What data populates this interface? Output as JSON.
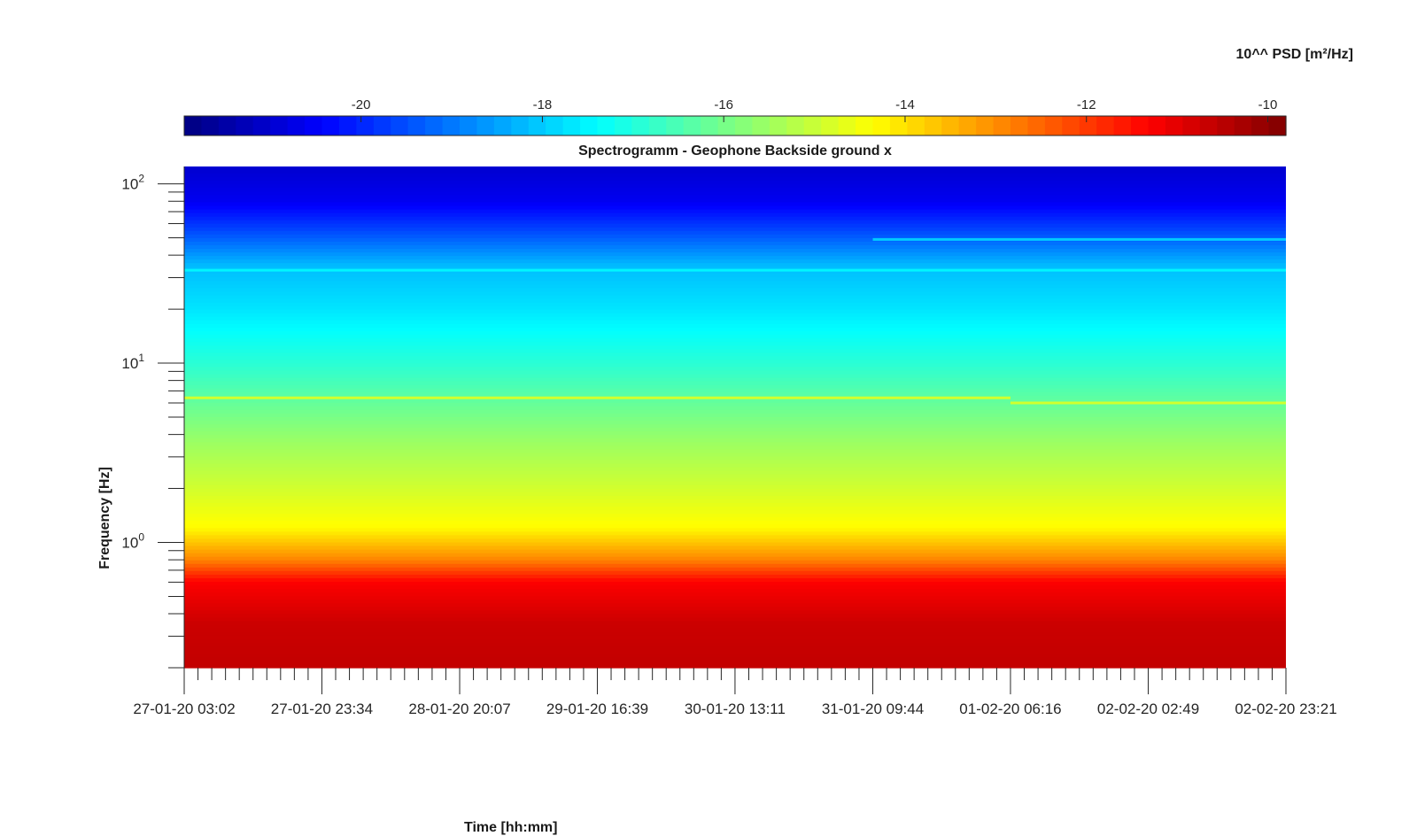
{
  "chart_data": {
    "type": "heatmap",
    "title": "Spectrogramm - Geophone Backside ground x",
    "xlabel": "Time [hh:mm]",
    "ylabel": "Frequency [Hz]",
    "x_ticks": [
      "27-01-20 03:02",
      "27-01-20 23:34",
      "28-01-20 20:07",
      "29-01-20 16:39",
      "30-01-20 13:11",
      "31-01-20 09:44",
      "01-02-20 06:16",
      "02-02-20 02:49",
      "02-02-20 23:21"
    ],
    "xlim": [
      "27-01-20 03:02",
      "02-02-20 23:21"
    ],
    "y_scale": "log",
    "y_ticks": [
      1,
      10,
      100
    ],
    "y_tick_labels": [
      "10",
      "10",
      "10"
    ],
    "y_tick_exponents": [
      "0",
      "1",
      "2"
    ],
    "ylim": [
      0.2,
      125
    ],
    "colorbar": {
      "label": "10^^ PSD [m²/Hz]",
      "location": "top",
      "colormap": "jet",
      "ticks": [
        -20,
        -18,
        -16,
        -14,
        -12,
        -10
      ],
      "range": [
        -21.95,
        -9.8
      ]
    },
    "frequency_profile": [
      {
        "freq": 0.2,
        "level": -10.6
      },
      {
        "freq": 0.35,
        "level": -10.7
      },
      {
        "freq": 0.6,
        "level": -11.3
      },
      {
        "freq": 0.8,
        "level": -12.9
      },
      {
        "freq": 1.2,
        "level": -14.3
      },
      {
        "freq": 2.0,
        "level": -14.9
      },
      {
        "freq": 3.5,
        "level": -15.5
      },
      {
        "freq": 6.0,
        "level": -16.2
      },
      {
        "freq": 10,
        "level": -16.9
      },
      {
        "freq": 20,
        "level": -17.7
      },
      {
        "freq": 35,
        "level": -18.2
      },
      {
        "freq": 55,
        "level": -19.6
      },
      {
        "freq": 80,
        "level": -20.6
      },
      {
        "freq": 125,
        "level": -21.0
      }
    ],
    "tonal_lines": [
      {
        "freq": 6.4,
        "level": -14.9,
        "from": "27-01-20 03:02",
        "to": "01-02-20 06:16"
      },
      {
        "freq": 6.0,
        "level": -14.9,
        "from": "01-02-20 06:16",
        "to": "02-02-20 23:21"
      },
      {
        "freq": 33,
        "level": -17.5,
        "from": "27-01-20 03:02",
        "to": "02-02-20 23:21"
      },
      {
        "freq": 49,
        "level": -18.0,
        "from": "31-01-20 09:44",
        "to": "02-02-20 23:21"
      }
    ]
  }
}
